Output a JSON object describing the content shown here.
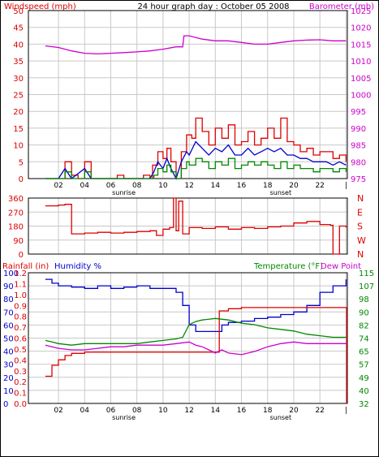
{
  "header": {
    "wind_label": "Windspeed (mph)",
    "title": "24 hour graph day : October 05 2008",
    "baro_label": "Barometer (mb)"
  },
  "colors": {
    "red": "#dd0000",
    "blue": "#0000cc",
    "green": "#008800",
    "magenta": "#cc00cc",
    "grid": "#c8c8c8"
  },
  "x_ticks": [
    "02",
    "04",
    "06",
    "08",
    "10",
    "12",
    "14",
    "16",
    "18",
    "20",
    "22",
    "|"
  ],
  "x_markers": {
    "sunrise": "sunrise",
    "sunset": "sunset"
  },
  "chart_data": [
    {
      "type": "line",
      "name": "panel1",
      "left_label": "Windspeed (mph)",
      "right_label": "Barometer (mb)",
      "left_ticks": [
        "0",
        "5",
        "10",
        "15",
        "20",
        "25",
        "30",
        "35",
        "40",
        "45",
        "50"
      ],
      "right_ticks": [
        "975",
        "980",
        "985",
        "990",
        "995",
        "1000",
        "1005",
        "1010",
        "1015",
        "1020",
        "1025"
      ],
      "ylim_left": [
        0,
        50
      ],
      "ylim_right": [
        975,
        1025
      ],
      "barometer": [
        [
          0,
          1014.5
        ],
        [
          1,
          1014
        ],
        [
          2,
          1013
        ],
        [
          3,
          1012.3
        ],
        [
          4,
          1012.1
        ],
        [
          5,
          1012.3
        ],
        [
          6,
          1012.5
        ],
        [
          7,
          1012.7
        ],
        [
          8,
          1013
        ],
        [
          9,
          1013.5
        ],
        [
          10,
          1014.2
        ],
        [
          10.5,
          1014.2
        ],
        [
          10.6,
          1017.5
        ],
        [
          11,
          1017.5
        ],
        [
          12,
          1016.5
        ],
        [
          13,
          1016
        ],
        [
          14,
          1016
        ],
        [
          15,
          1015.5
        ],
        [
          16,
          1015
        ],
        [
          17,
          1015
        ],
        [
          18,
          1015.5
        ],
        [
          19,
          1016
        ],
        [
          20,
          1016.2
        ],
        [
          21,
          1016.3
        ],
        [
          22,
          1016
        ],
        [
          23,
          1016
        ]
      ],
      "gust": [
        [
          0,
          0
        ],
        [
          1,
          0
        ],
        [
          1.5,
          5
        ],
        [
          2,
          1
        ],
        [
          2.5,
          0
        ],
        [
          3,
          5
        ],
        [
          3.5,
          0
        ],
        [
          4,
          0
        ],
        [
          5,
          0
        ],
        [
          5.5,
          1
        ],
        [
          6,
          0
        ],
        [
          7,
          0
        ],
        [
          7.5,
          1
        ],
        [
          8,
          0
        ],
        [
          8.2,
          4
        ],
        [
          8.6,
          8
        ],
        [
          9,
          6
        ],
        [
          9.3,
          9
        ],
        [
          9.6,
          5
        ],
        [
          10,
          0
        ],
        [
          10.4,
          8
        ],
        [
          10.8,
          13
        ],
        [
          11.2,
          12
        ],
        [
          11.5,
          18
        ],
        [
          12,
          14
        ],
        [
          12.5,
          10
        ],
        [
          13,
          15
        ],
        [
          13.5,
          12
        ],
        [
          14,
          16
        ],
        [
          14.5,
          10
        ],
        [
          15,
          11
        ],
        [
          15.5,
          14
        ],
        [
          16,
          10
        ],
        [
          16.5,
          12
        ],
        [
          17,
          15
        ],
        [
          17.5,
          12
        ],
        [
          18,
          18
        ],
        [
          18.5,
          11
        ],
        [
          19,
          10
        ],
        [
          19.5,
          8
        ],
        [
          20,
          9
        ],
        [
          20.5,
          7
        ],
        [
          21,
          8
        ],
        [
          21.5,
          8
        ],
        [
          22,
          6
        ],
        [
          22.5,
          7
        ],
        [
          23,
          5
        ]
      ],
      "wind": [
        [
          0,
          0
        ],
        [
          1,
          0
        ],
        [
          1.5,
          3
        ],
        [
          2,
          0
        ],
        [
          3,
          3
        ],
        [
          3.5,
          0
        ],
        [
          8,
          0
        ],
        [
          8.3,
          2
        ],
        [
          8.6,
          5
        ],
        [
          9,
          3
        ],
        [
          9.3,
          6
        ],
        [
          9.6,
          3
        ],
        [
          10,
          0
        ],
        [
          10.4,
          5
        ],
        [
          10.8,
          8
        ],
        [
          11,
          7
        ],
        [
          11.5,
          11
        ],
        [
          12,
          9
        ],
        [
          12.5,
          7
        ],
        [
          13,
          9
        ],
        [
          13.5,
          8
        ],
        [
          14,
          10
        ],
        [
          14.5,
          7
        ],
        [
          15,
          7
        ],
        [
          15.5,
          9
        ],
        [
          16,
          7
        ],
        [
          16.5,
          8
        ],
        [
          17,
          9
        ],
        [
          17.5,
          8
        ],
        [
          18,
          9
        ],
        [
          18.5,
          7
        ],
        [
          19,
          7
        ],
        [
          19.5,
          6
        ],
        [
          20,
          6
        ],
        [
          20.5,
          5
        ],
        [
          21,
          5
        ],
        [
          21.5,
          5
        ],
        [
          22,
          4
        ],
        [
          22.5,
          5
        ],
        [
          23,
          4
        ]
      ],
      "direction_avg": [
        [
          0,
          0
        ],
        [
          1,
          0
        ],
        [
          1.5,
          2
        ],
        [
          2,
          0
        ],
        [
          3,
          2
        ],
        [
          3.5,
          0
        ],
        [
          8,
          0
        ],
        [
          8.3,
          1
        ],
        [
          8.6,
          3
        ],
        [
          9,
          2
        ],
        [
          9.3,
          4
        ],
        [
          9.6,
          2
        ],
        [
          10,
          0
        ],
        [
          10.4,
          3
        ],
        [
          10.8,
          5
        ],
        [
          11,
          4
        ],
        [
          11.5,
          6
        ],
        [
          12,
          5
        ],
        [
          12.5,
          3
        ],
        [
          13,
          5
        ],
        [
          13.5,
          4
        ],
        [
          14,
          6
        ],
        [
          14.5,
          3
        ],
        [
          15,
          4
        ],
        [
          15.5,
          5
        ],
        [
          16,
          4
        ],
        [
          16.5,
          5
        ],
        [
          17,
          4
        ],
        [
          17.5,
          3
        ],
        [
          18,
          5
        ],
        [
          18.5,
          3
        ],
        [
          19,
          4
        ],
        [
          19.5,
          3
        ],
        [
          20,
          3
        ],
        [
          20.5,
          2
        ],
        [
          21,
          3
        ],
        [
          21.5,
          3
        ],
        [
          22,
          2
        ],
        [
          22.5,
          3
        ],
        [
          23,
          2
        ]
      ]
    },
    {
      "type": "line",
      "name": "panel2",
      "left_ticks": [
        "0",
        "90",
        "180",
        "270",
        "360"
      ],
      "right_ticks": [
        "N",
        "W",
        "S",
        "E",
        "N"
      ],
      "ylim": [
        0,
        360
      ],
      "direction": [
        [
          0,
          310
        ],
        [
          1,
          315
        ],
        [
          1.5,
          320
        ],
        [
          2,
          130
        ],
        [
          3,
          135
        ],
        [
          4,
          140
        ],
        [
          5,
          135
        ],
        [
          6,
          140
        ],
        [
          7,
          145
        ],
        [
          8,
          150
        ],
        [
          8.5,
          120
        ],
        [
          9,
          160
        ],
        [
          9.5,
          170
        ],
        [
          9.8,
          360
        ],
        [
          10,
          150
        ],
        [
          10.2,
          340
        ],
        [
          10.5,
          130
        ],
        [
          11,
          170
        ],
        [
          12,
          165
        ],
        [
          13,
          175
        ],
        [
          14,
          160
        ],
        [
          15,
          170
        ],
        [
          16,
          165
        ],
        [
          17,
          175
        ],
        [
          18,
          180
        ],
        [
          19,
          200
        ],
        [
          20,
          210
        ],
        [
          21,
          190
        ],
        [
          21.8,
          185
        ],
        [
          22,
          0
        ],
        [
          22.3,
          0
        ],
        [
          22.5,
          180
        ],
        [
          23,
          170
        ]
      ]
    },
    {
      "type": "line",
      "name": "panel3",
      "left_label_rain": "Rainfall (in)",
      "left_label_hum": "Humidity %",
      "right_label": "Temperature (°F)",
      "right_label2": "Dew Point",
      "hum_ticks": [
        "0",
        "10",
        "20",
        "30",
        "40",
        "50",
        "60",
        "70",
        "80",
        "90",
        "100"
      ],
      "rain_ticks": [
        "0.0",
        "0.1",
        "0.2",
        "0.3",
        "0.4",
        "0.5",
        "0.6",
        "0.7",
        "0.8",
        "0.9",
        "1.0",
        "1.1",
        "1.2"
      ],
      "temp_ticks": [
        "32",
        "40",
        "49",
        "57",
        "65",
        "74",
        "82",
        "90",
        "98",
        "107",
        "115"
      ],
      "ylim_hum": [
        0,
        100
      ],
      "ylim_temp": [
        32,
        115
      ],
      "humidity": [
        [
          0,
          95
        ],
        [
          0.5,
          92
        ],
        [
          1,
          90
        ],
        [
          2,
          89
        ],
        [
          3,
          88
        ],
        [
          4,
          90
        ],
        [
          5,
          88
        ],
        [
          6,
          89
        ],
        [
          7,
          90
        ],
        [
          8,
          88
        ],
        [
          9,
          88
        ],
        [
          10,
          85
        ],
        [
          10.5,
          75
        ],
        [
          11,
          60
        ],
        [
          11.5,
          55
        ],
        [
          12,
          55
        ],
        [
          12.5,
          55
        ],
        [
          13,
          55
        ],
        [
          13.5,
          60
        ],
        [
          14,
          62
        ],
        [
          15,
          63
        ],
        [
          16,
          65
        ],
        [
          17,
          66
        ],
        [
          18,
          68
        ],
        [
          19,
          70
        ],
        [
          20,
          75
        ],
        [
          21,
          85
        ],
        [
          22,
          90
        ],
        [
          23,
          95
        ]
      ],
      "rainfall": [
        [
          0,
          0.25
        ],
        [
          0.5,
          0.35
        ],
        [
          1,
          0.4
        ],
        [
          1.5,
          0.44
        ],
        [
          2,
          0.46
        ],
        [
          3,
          0.47
        ],
        [
          10.5,
          0.47
        ],
        [
          11,
          0.47
        ],
        [
          12,
          0.47
        ],
        [
          12.5,
          0.47
        ],
        [
          13,
          0.47
        ],
        [
          13.3,
          0.85
        ],
        [
          14,
          0.87
        ],
        [
          15,
          0.88
        ],
        [
          23,
          0.88
        ],
        [
          23.05,
          0.0
        ]
      ],
      "temperature": [
        [
          0,
          72
        ],
        [
          0.5,
          71
        ],
        [
          1,
          70
        ],
        [
          2,
          69
        ],
        [
          3,
          70
        ],
        [
          4,
          70
        ],
        [
          5,
          70
        ],
        [
          6,
          70
        ],
        [
          7,
          70
        ],
        [
          8,
          71
        ],
        [
          9,
          72
        ],
        [
          10,
          73
        ],
        [
          10.5,
          74
        ],
        [
          11,
          82
        ],
        [
          11.5,
          84
        ],
        [
          12,
          85
        ],
        [
          13,
          86
        ],
        [
          14,
          85
        ],
        [
          15,
          83
        ],
        [
          16,
          82
        ],
        [
          17,
          80
        ],
        [
          18,
          79
        ],
        [
          19,
          78
        ],
        [
          20,
          76
        ],
        [
          21,
          75
        ],
        [
          22,
          74
        ],
        [
          23,
          74
        ]
      ],
      "dewpoint": [
        [
          0,
          69
        ],
        [
          0.5,
          68
        ],
        [
          1,
          67
        ],
        [
          2,
          66
        ],
        [
          3,
          66
        ],
        [
          4,
          67
        ],
        [
          5,
          68
        ],
        [
          6,
          68
        ],
        [
          7,
          69
        ],
        [
          8,
          69
        ],
        [
          9,
          69
        ],
        [
          10,
          70
        ],
        [
          11,
          71
        ],
        [
          11.5,
          69
        ],
        [
          12,
          68
        ],
        [
          12.5,
          66
        ],
        [
          13,
          64
        ],
        [
          13.5,
          66
        ],
        [
          14,
          64
        ],
        [
          15,
          63
        ],
        [
          16,
          65
        ],
        [
          17,
          68
        ],
        [
          18,
          70
        ],
        [
          19,
          71
        ],
        [
          20,
          70
        ],
        [
          21,
          70
        ],
        [
          22,
          70
        ],
        [
          23,
          70
        ]
      ]
    }
  ]
}
